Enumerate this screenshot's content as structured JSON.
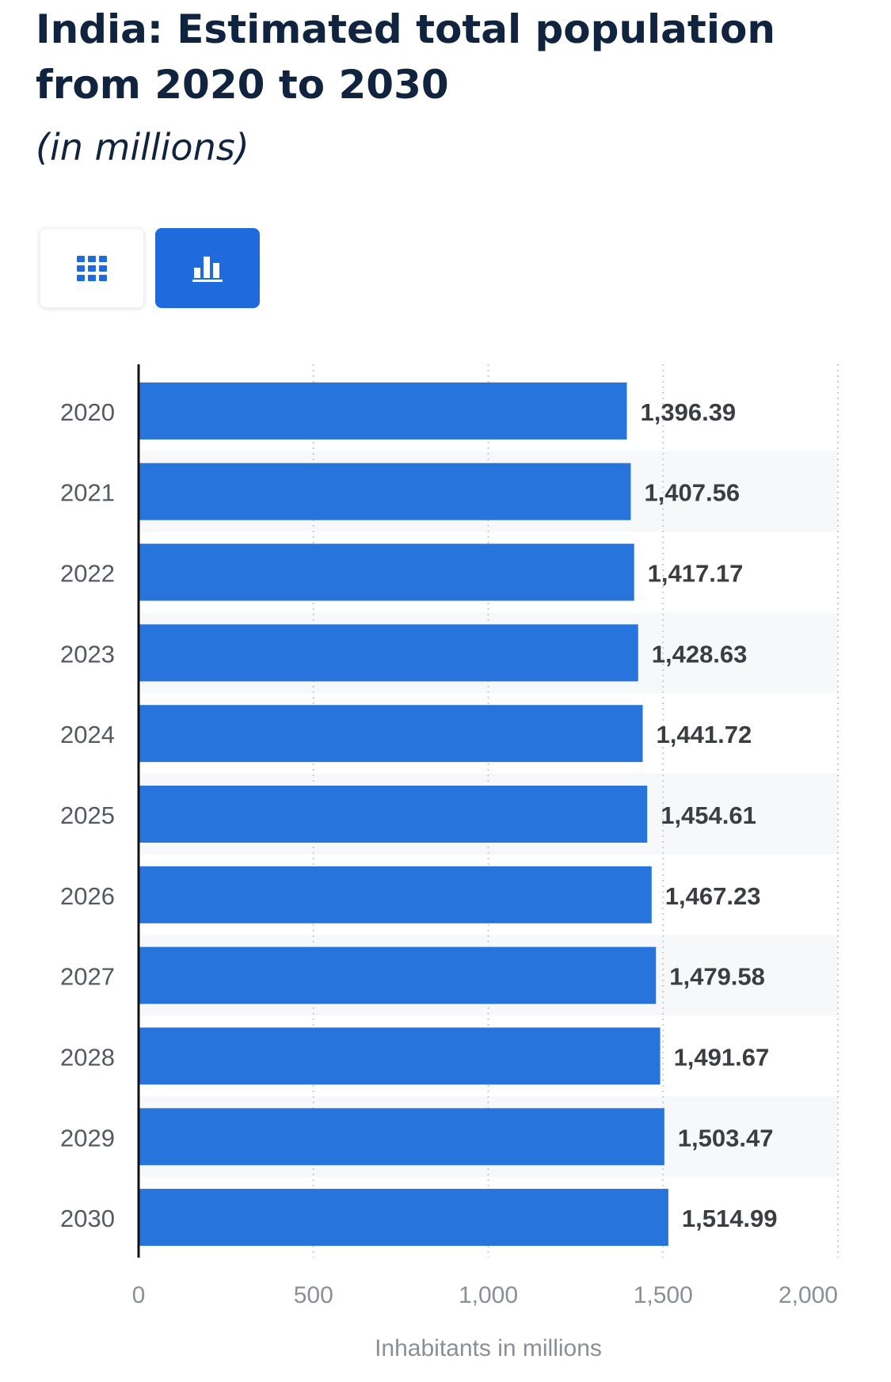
{
  "header": {
    "title": "India: Estimated total population from 2020 to 2030",
    "subtitle": "(in millions)"
  },
  "view_toggle": {
    "table_icon": "grid-table-icon",
    "chart_icon": "bar-chart-icon",
    "active": "chart"
  },
  "colors": {
    "bar": "#2874dd",
    "active_button": "#1f6bde",
    "title": "#10243f"
  },
  "chart_data": {
    "type": "bar",
    "orientation": "horizontal",
    "categories": [
      "2020",
      "2021",
      "2022",
      "2023",
      "2024",
      "2025",
      "2026",
      "2027",
      "2028",
      "2029",
      "2030"
    ],
    "values": [
      1396.39,
      1407.56,
      1417.17,
      1428.63,
      1441.72,
      1454.61,
      1467.23,
      1479.58,
      1491.67,
      1503.47,
      1514.99
    ],
    "value_labels": [
      "1,396.39",
      "1,407.56",
      "1,417.17",
      "1,428.63",
      "1,441.72",
      "1,454.61",
      "1,467.23",
      "1,479.58",
      "1,491.67",
      "1,503.47",
      "1,514.99"
    ],
    "xlabel": "Inhabitants in millions",
    "xlim": [
      0,
      2000
    ],
    "xticks": [
      0,
      500,
      1000,
      1500,
      2000
    ],
    "xtick_labels": [
      "0",
      "500",
      "1,000",
      "1,500",
      "2,000"
    ],
    "grid": true
  }
}
